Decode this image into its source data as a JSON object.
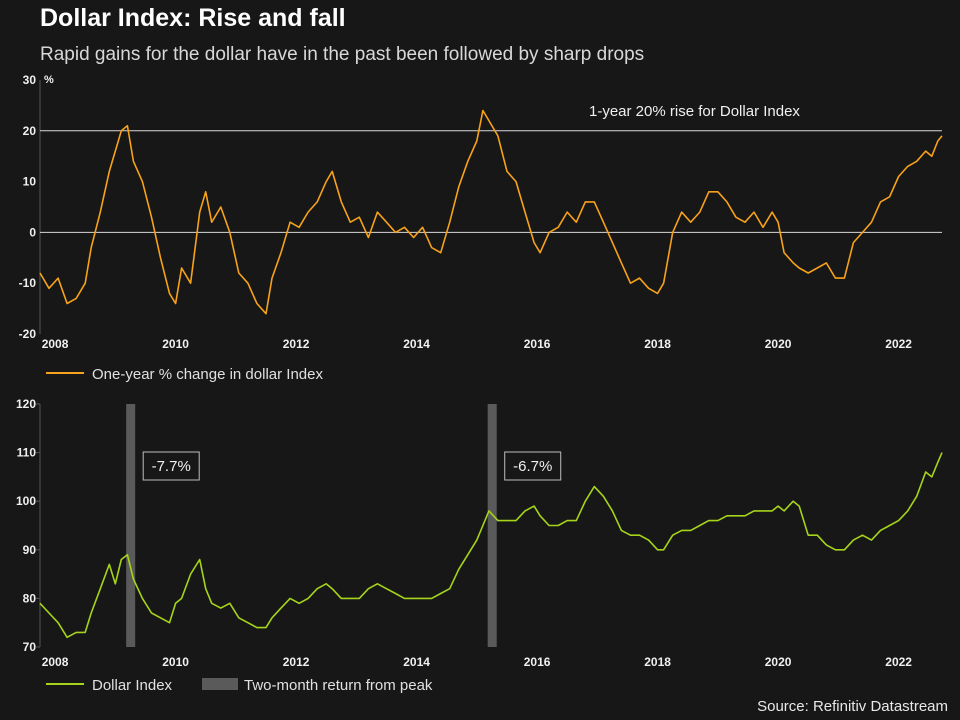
{
  "title": "Dollar Index: Rise and fall",
  "subtitle": "Rapid gains for the dollar have in the past been followed by sharp drops",
  "source": "Source: Refinitiv Datastream",
  "colors": {
    "orange": "#f7a21b",
    "green": "#a6d41a",
    "background": "#171717",
    "shade": "#5a5a5a"
  },
  "chart_data": [
    {
      "type": "line",
      "title": "One-year % change in dollar Index",
      "ylabel": "%",
      "xlim": [
        2007.75,
        2022.72
      ],
      "ylim": [
        -20,
        30
      ],
      "yticks": [
        "30",
        "20",
        "10",
        "0",
        "-10",
        "-20"
      ],
      "xticks": [
        "2008",
        "2010",
        "2012",
        "2014",
        "2016",
        "2018",
        "2020",
        "2022"
      ],
      "reference_line": {
        "value": 20,
        "label": "1-year 20% rise for Dollar Index"
      },
      "zero_line": 0,
      "legend": "One-year % change in dollar Index",
      "series": [
        {
          "name": "One-year % change in dollar Index",
          "x": [
            2007.75,
            2007.9,
            2008.05,
            2008.2,
            2008.35,
            2008.5,
            2008.6,
            2008.75,
            2008.9,
            2009.0,
            2009.1,
            2009.2,
            2009.3,
            2009.45,
            2009.6,
            2009.75,
            2009.9,
            2010.0,
            2010.1,
            2010.25,
            2010.4,
            2010.5,
            2010.6,
            2010.75,
            2010.9,
            2011.05,
            2011.2,
            2011.35,
            2011.5,
            2011.6,
            2011.75,
            2011.9,
            2012.05,
            2012.2,
            2012.35,
            2012.5,
            2012.6,
            2012.75,
            2012.9,
            2013.05,
            2013.2,
            2013.35,
            2013.5,
            2013.65,
            2013.8,
            2013.95,
            2014.1,
            2014.25,
            2014.4,
            2014.55,
            2014.7,
            2014.85,
            2015.0,
            2015.1,
            2015.2,
            2015.35,
            2015.5,
            2015.65,
            2015.8,
            2015.95,
            2016.05,
            2016.2,
            2016.35,
            2016.5,
            2016.65,
            2016.8,
            2016.95,
            2017.1,
            2017.25,
            2017.4,
            2017.55,
            2017.7,
            2017.85,
            2018.0,
            2018.1,
            2018.25,
            2018.4,
            2018.55,
            2018.7,
            2018.85,
            2019.0,
            2019.15,
            2019.3,
            2019.45,
            2019.6,
            2019.75,
            2019.9,
            2020.0,
            2020.1,
            2020.25,
            2020.35,
            2020.5,
            2020.65,
            2020.8,
            2020.95,
            2021.1,
            2021.25,
            2021.4,
            2021.55,
            2021.7,
            2021.85,
            2022.0,
            2022.15,
            2022.3,
            2022.45,
            2022.55,
            2022.65,
            2022.72
          ],
          "values": [
            -8,
            -11,
            -9,
            -14,
            -13,
            -10,
            -3,
            4,
            12,
            16,
            20,
            21,
            14,
            10,
            3,
            -5,
            -12,
            -14,
            -7,
            -10,
            4,
            8,
            2,
            5,
            0,
            -8,
            -10,
            -14,
            -16,
            -9,
            -4,
            2,
            1,
            4,
            6,
            10,
            12,
            6,
            2,
            3,
            -1,
            4,
            2,
            0,
            1,
            -1,
            1,
            -3,
            -4,
            2,
            9,
            14,
            18,
            24,
            22,
            19,
            12,
            10,
            4,
            -2,
            -4,
            0,
            1,
            4,
            2,
            6,
            6,
            2,
            -2,
            -6,
            -10,
            -9,
            -11,
            -12,
            -10,
            0,
            4,
            2,
            4,
            8,
            8,
            6,
            3,
            2,
            4,
            1,
            4,
            2,
            -4,
            -6,
            -7,
            -8,
            -7,
            -6,
            -9,
            -9,
            -2,
            0,
            2,
            6,
            7,
            11,
            13,
            14,
            16,
            15,
            18,
            19
          ]
        }
      ]
    },
    {
      "type": "line",
      "title": "Dollar Index",
      "xlim": [
        2007.75,
        2022.72
      ],
      "ylim": [
        70,
        120
      ],
      "yticks": [
        "120",
        "110",
        "100",
        "90",
        "80",
        "70"
      ],
      "xticks": [
        "2008",
        "2010",
        "2012",
        "2014",
        "2016",
        "2018",
        "2020",
        "2022"
      ],
      "shaded_periods": [
        {
          "start": 2009.18,
          "end": 2009.33,
          "label": "-7.7%"
        },
        {
          "start": 2015.18,
          "end": 2015.33,
          "label": "-6.7%"
        }
      ],
      "legend": [
        "Dollar Index",
        "Two-month return from peak"
      ],
      "series": [
        {
          "name": "Dollar Index",
          "x": [
            2007.75,
            2007.9,
            2008.05,
            2008.2,
            2008.35,
            2008.5,
            2008.6,
            2008.75,
            2008.9,
            2009.0,
            2009.1,
            2009.2,
            2009.3,
            2009.45,
            2009.6,
            2009.75,
            2009.9,
            2010.0,
            2010.1,
            2010.25,
            2010.4,
            2010.5,
            2010.6,
            2010.75,
            2010.9,
            2011.05,
            2011.2,
            2011.35,
            2011.5,
            2011.6,
            2011.75,
            2011.9,
            2012.05,
            2012.2,
            2012.35,
            2012.5,
            2012.6,
            2012.75,
            2012.9,
            2013.05,
            2013.2,
            2013.35,
            2013.5,
            2013.65,
            2013.8,
            2013.95,
            2014.1,
            2014.25,
            2014.4,
            2014.55,
            2014.7,
            2014.85,
            2015.0,
            2015.1,
            2015.2,
            2015.35,
            2015.5,
            2015.65,
            2015.8,
            2015.95,
            2016.05,
            2016.2,
            2016.35,
            2016.5,
            2016.65,
            2016.8,
            2016.95,
            2017.1,
            2017.25,
            2017.4,
            2017.55,
            2017.7,
            2017.85,
            2018.0,
            2018.1,
            2018.25,
            2018.4,
            2018.55,
            2018.7,
            2018.85,
            2019.0,
            2019.15,
            2019.3,
            2019.45,
            2019.6,
            2019.75,
            2019.9,
            2020.0,
            2020.1,
            2020.25,
            2020.35,
            2020.5,
            2020.65,
            2020.8,
            2020.95,
            2021.1,
            2021.25,
            2021.4,
            2021.55,
            2021.7,
            2021.85,
            2022.0,
            2022.15,
            2022.3,
            2022.45,
            2022.55,
            2022.65,
            2022.72
          ],
          "values": [
            79,
            77,
            75,
            72,
            73,
            73,
            77,
            82,
            87,
            83,
            88,
            89,
            84,
            80,
            77,
            76,
            75,
            79,
            80,
            85,
            88,
            82,
            79,
            78,
            79,
            76,
            75,
            74,
            74,
            76,
            78,
            80,
            79,
            80,
            82,
            83,
            82,
            80,
            80,
            80,
            82,
            83,
            82,
            81,
            80,
            80,
            80,
            80,
            81,
            82,
            86,
            89,
            92,
            95,
            98,
            96,
            96,
            96,
            98,
            99,
            97,
            95,
            95,
            96,
            96,
            100,
            103,
            101,
            98,
            94,
            93,
            93,
            92,
            90,
            90,
            93,
            94,
            94,
            95,
            96,
            96,
            97,
            97,
            97,
            98,
            98,
            98,
            99,
            98,
            100,
            99,
            93,
            93,
            91,
            90,
            90,
            92,
            93,
            92,
            94,
            95,
            96,
            98,
            101,
            106,
            105,
            108,
            110
          ]
        }
      ]
    }
  ]
}
